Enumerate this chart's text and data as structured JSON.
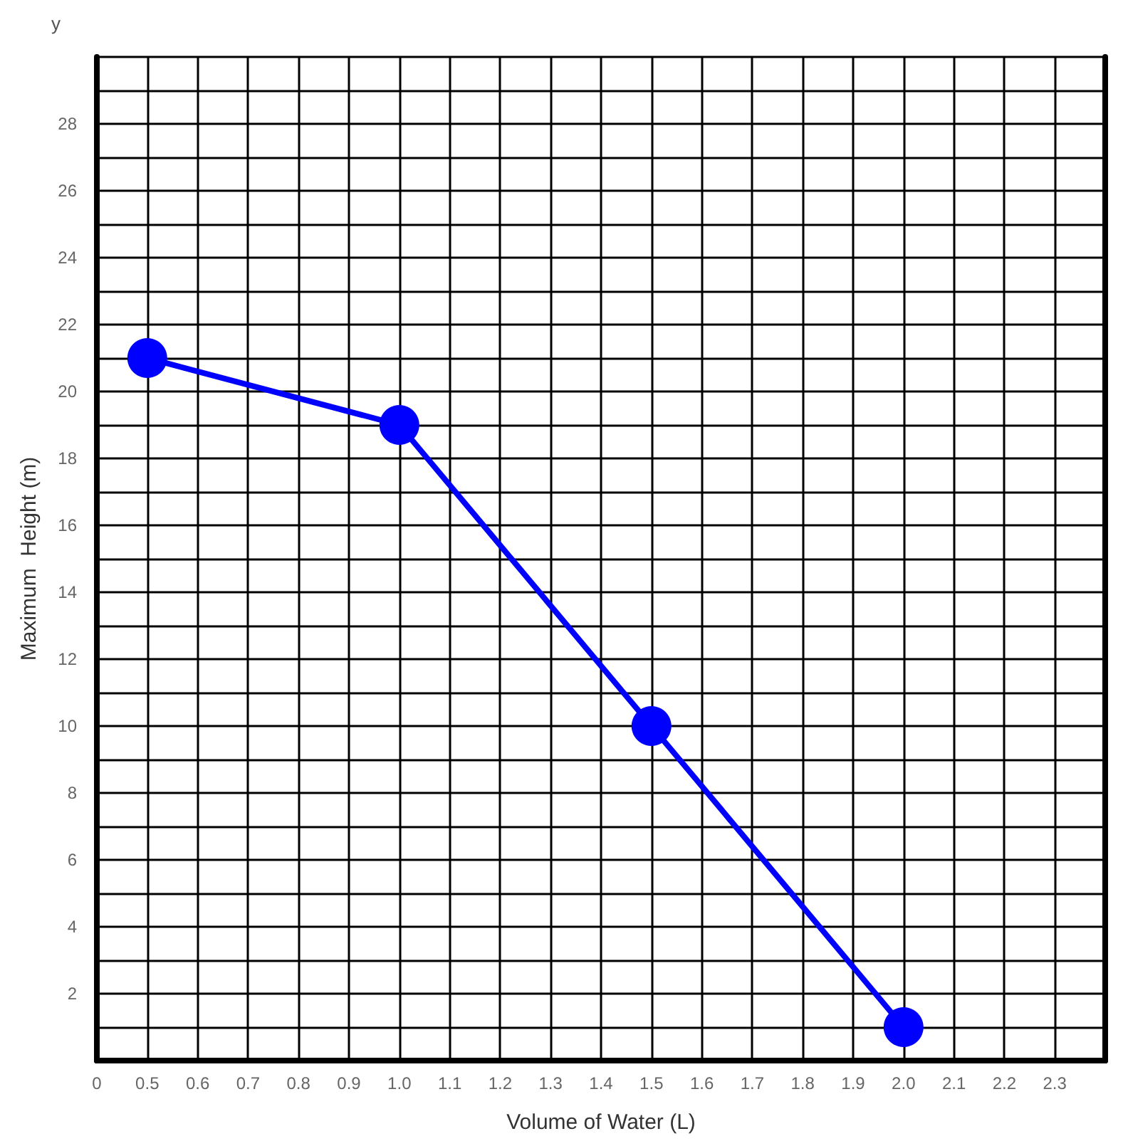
{
  "chart_data": {
    "type": "line",
    "xlabel": "Volume of Water (L)",
    "ylabel": "Maximum  Height (m)",
    "annotations": [
      "y"
    ],
    "x": [
      0.5,
      1.0,
      1.5,
      2.0
    ],
    "series": [
      {
        "color": "#0000ff",
        "values": [
          21,
          19,
          10,
          1
        ]
      }
    ],
    "marker": "circle",
    "line_style": "solid",
    "grid": true,
    "xlim": [
      0.4,
      2.4
    ],
    "xticks": [
      {
        "value": 0.4,
        "label": "0"
      },
      0.5,
      0.6,
      0.7,
      0.8,
      0.9,
      {
        "value": 1,
        "label": "1.0"
      },
      1.1,
      1.2,
      1.3,
      1.4,
      1.5,
      1.6,
      1.7,
      1.8,
      1.9,
      {
        "value": 2,
        "label": "2.0"
      },
      2.1,
      2.2,
      2.3,
      {
        "value": 2.4,
        "label": null
      }
    ],
    "ylim": [
      0,
      30
    ],
    "yticks": [
      {
        "value": 0,
        "label": null
      },
      {
        "value": 1,
        "label": null
      },
      2,
      {
        "value": 3,
        "label": null
      },
      4,
      {
        "value": 5,
        "label": null
      },
      6,
      {
        "value": 7,
        "label": null
      },
      8,
      {
        "value": 9,
        "label": null
      },
      10,
      {
        "value": 11,
        "label": null
      },
      12,
      {
        "value": 13,
        "label": null
      },
      14,
      {
        "value": 15,
        "label": null
      },
      16,
      {
        "value": 17,
        "label": null
      },
      18,
      {
        "value": 19,
        "label": null
      },
      20,
      {
        "value": 21,
        "label": null
      },
      22,
      {
        "value": 23,
        "label": null
      },
      24,
      {
        "value": 25,
        "label": null
      },
      26,
      {
        "value": 27,
        "label": null
      },
      28,
      {
        "value": 29,
        "label": null
      },
      {
        "value": 30,
        "label": null
      }
    ]
  }
}
